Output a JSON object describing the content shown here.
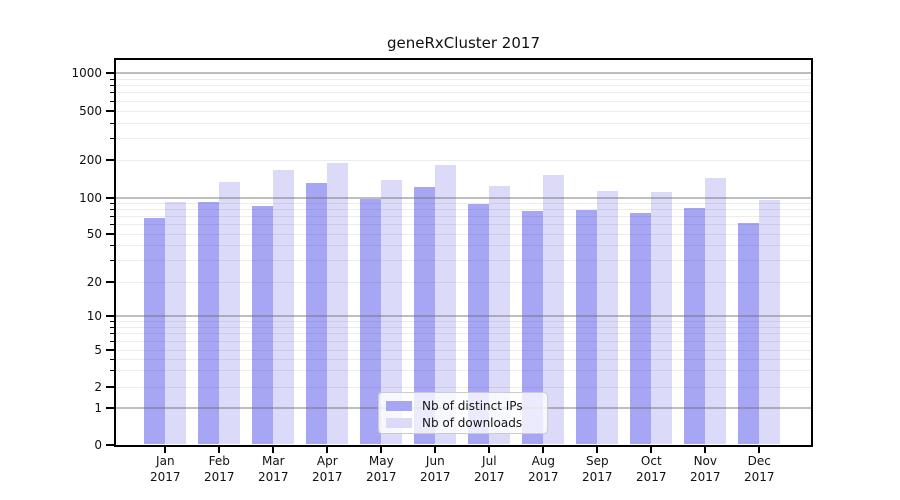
{
  "title": "geneRxCluster 2017",
  "chart_data": {
    "type": "bar",
    "title": "geneRxCluster 2017",
    "categories": [
      "Jan",
      "Feb",
      "Mar",
      "Apr",
      "May",
      "Jun",
      "Jul",
      "Aug",
      "Sep",
      "Oct",
      "Nov",
      "Dec"
    ],
    "category_year": "2017",
    "series": [
      {
        "name": "Nb of distinct IPs",
        "color": "#a6a6f4",
        "values": [
          68,
          92,
          85,
          131,
          98,
          121,
          88,
          77,
          78,
          74,
          82,
          61
        ]
      },
      {
        "name": "Nb of downloads",
        "color": "#dbdbf9",
        "values": [
          91,
          133,
          167,
          190,
          137,
          183,
          124,
          152,
          113,
          111,
          143,
          96
        ]
      }
    ],
    "xlabel": "",
    "ylabel": "",
    "yaxis": {
      "scale": "log",
      "tick_labels": [
        "0",
        "1",
        "2",
        "5",
        "10",
        "20",
        "50",
        "100",
        "200",
        "500",
        "1000"
      ],
      "ticks": [
        0,
        1,
        2,
        5,
        10,
        20,
        50,
        100,
        200,
        500,
        1000
      ],
      "ylim": [
        0,
        1000
      ]
    },
    "grid": true,
    "legend_position": "lower center",
    "colors": {
      "background": "#ffffff",
      "spine": "#000000",
      "major_grid": "#b5b5b5",
      "minor_grid": "#e8e8e8",
      "text": "#111111"
    }
  }
}
